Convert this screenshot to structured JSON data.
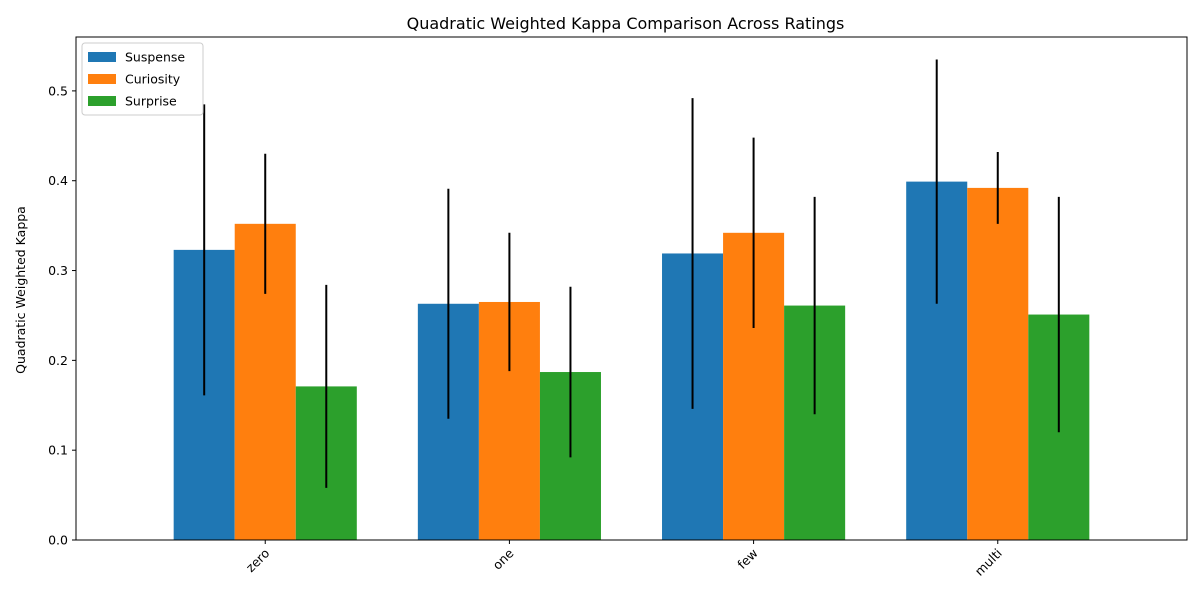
{
  "chart_data": {
    "type": "bar",
    "title": "Quadratic Weighted Kappa Comparison Across Ratings",
    "xlabel": "",
    "ylabel": "Quadratic Weighted Kappa",
    "categories": [
      "zero",
      "one",
      "few",
      "multi"
    ],
    "ylim": [
      0,
      0.56
    ],
    "yticks": [
      0.0,
      0.1,
      0.2,
      0.3,
      0.4,
      0.5
    ],
    "ytick_labels": [
      "0.0",
      "0.1",
      "0.2",
      "0.3",
      "0.4",
      "0.5"
    ],
    "grid": false,
    "legend_position": "top-left",
    "error_bars": true,
    "series": [
      {
        "name": "Suspense",
        "color": "#1f77b4",
        "values": [
          0.323,
          0.263,
          0.319,
          0.399
        ],
        "errors": [
          0.162,
          0.128,
          0.173,
          0.136
        ]
      },
      {
        "name": "Curiosity",
        "color": "#ff7f0e",
        "values": [
          0.352,
          0.265,
          0.342,
          0.392
        ],
        "errors": [
          0.078,
          0.077,
          0.106,
          0.04
        ]
      },
      {
        "name": "Surprise",
        "color": "#2ca02c",
        "values": [
          0.171,
          0.187,
          0.261,
          0.251
        ],
        "errors": [
          0.113,
          0.095,
          0.121,
          0.131
        ]
      }
    ]
  }
}
